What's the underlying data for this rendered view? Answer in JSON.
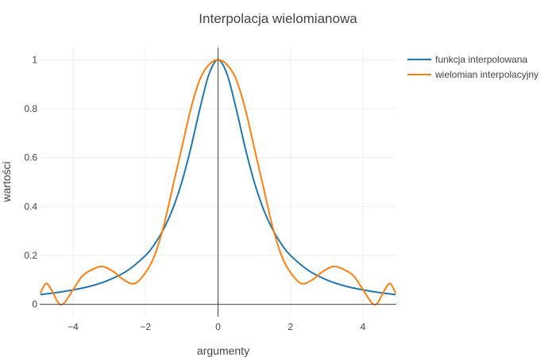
{
  "chart_data": {
    "type": "line",
    "title": "Interpolacja wielomianowa",
    "xlabel": "argumenty",
    "ylabel": "wartości",
    "xlim": [
      -4.92,
      4.92
    ],
    "ylim": [
      -0.05,
      1.05
    ],
    "xticks": [
      -4,
      -2,
      0,
      2,
      4
    ],
    "xtick_labels": [
      "−4",
      "−2",
      "0",
      "2",
      "4"
    ],
    "yticks": [
      0,
      0.2,
      0.4,
      0.6,
      0.8,
      1
    ],
    "ytick_labels": [
      "0",
      "0.2",
      "0.4",
      "0.6",
      "0.8",
      "1"
    ],
    "grid": true,
    "legend_position": "top-right",
    "series": [
      {
        "name": "funkcja interpolowana",
        "color": "#1f77b4",
        "x": [
          -4.9,
          -4.5,
          -4.0,
          -3.5,
          -3.0,
          -2.5,
          -2.0,
          -1.75,
          -1.5,
          -1.25,
          -1.0,
          -0.75,
          -0.5,
          -0.25,
          0.0,
          0.25,
          0.5,
          0.75,
          1.0,
          1.25,
          1.5,
          1.75,
          2.0,
          2.5,
          3.0,
          3.5,
          4.0,
          4.5,
          4.9
        ],
        "y": [
          0.04,
          0.047,
          0.059,
          0.075,
          0.1,
          0.138,
          0.2,
          0.246,
          0.308,
          0.39,
          0.5,
          0.64,
          0.8,
          0.941,
          1.0,
          0.941,
          0.8,
          0.64,
          0.5,
          0.39,
          0.308,
          0.246,
          0.2,
          0.138,
          0.1,
          0.075,
          0.059,
          0.047,
          0.04
        ]
      },
      {
        "name": "wielomian interpolacyjny",
        "color": "#ff7f0e",
        "x": [
          -4.9,
          -4.75,
          -4.6,
          -4.4,
          -4.25,
          -4.0,
          -3.75,
          -3.5,
          -3.2,
          -2.9,
          -2.6,
          -2.3,
          -2.0,
          -1.75,
          -1.5,
          -1.25,
          -1.0,
          -0.75,
          -0.5,
          -0.25,
          0.0,
          0.25,
          0.5,
          0.75,
          1.0,
          1.25,
          1.5,
          1.75,
          2.0,
          2.3,
          2.6,
          2.9,
          3.2,
          3.5,
          3.75,
          4.0,
          4.25,
          4.4,
          4.6,
          4.75,
          4.9
        ],
        "y": [
          0.045,
          0.085,
          0.06,
          0.005,
          0.005,
          0.06,
          0.115,
          0.14,
          0.155,
          0.135,
          0.1,
          0.085,
          0.13,
          0.2,
          0.32,
          0.48,
          0.64,
          0.8,
          0.92,
          0.98,
          1.0,
          0.98,
          0.92,
          0.8,
          0.64,
          0.48,
          0.32,
          0.2,
          0.13,
          0.085,
          0.1,
          0.135,
          0.155,
          0.14,
          0.115,
          0.06,
          0.005,
          0.005,
          0.06,
          0.085,
          0.045
        ]
      }
    ]
  }
}
